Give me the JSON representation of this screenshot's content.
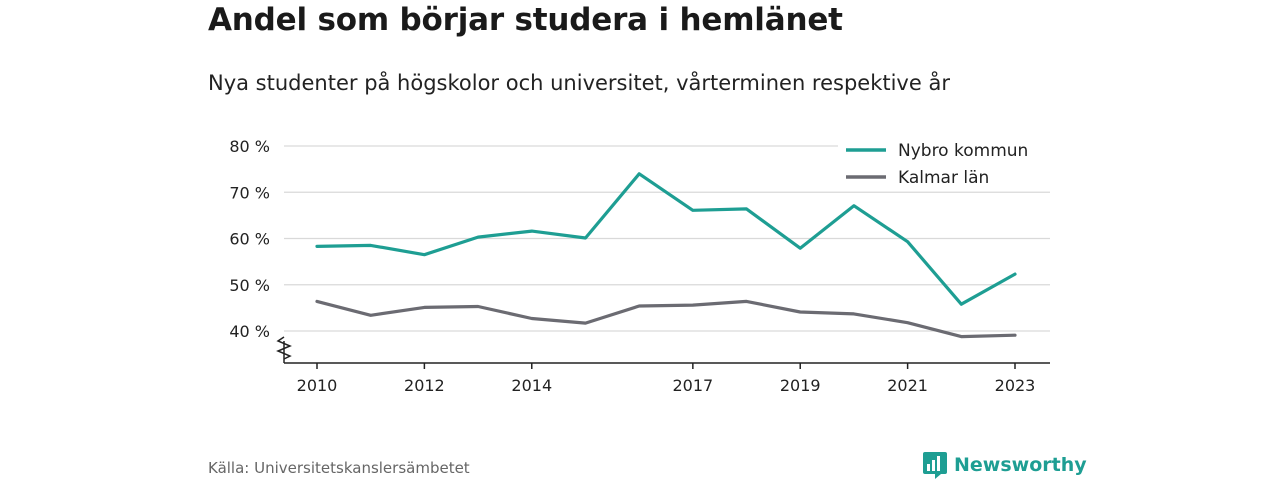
{
  "title": "Andel som börjar studera i hemlänet",
  "subtitle": "Nya studenter på högskolor och universitet, vårterminen respektive år",
  "source": "Källa: Universitetskanslersämbetet",
  "brand": {
    "name": "Newsworthy",
    "color": "#1e9e93",
    "icon": "bar-chart-speech-bubble-icon"
  },
  "chart_data": {
    "type": "line",
    "x": [
      2010,
      2011,
      2012,
      2013,
      2014,
      2015,
      2016,
      2017,
      2018,
      2019,
      2020,
      2021,
      2022,
      2023
    ],
    "x_tick_labels": [
      "2010",
      "2012",
      "2014",
      "2017",
      "2019",
      "2021",
      "2023"
    ],
    "y_tick_values": [
      40,
      50,
      60,
      70,
      80
    ],
    "y_tick_labels": [
      "40 %",
      "50 %",
      "60 %",
      "70 %",
      "80 %"
    ],
    "ylim": [
      33,
      80
    ],
    "y_axis_break": true,
    "grid": true,
    "legend_position": "top-right",
    "series": [
      {
        "name": "Nybro kommun",
        "color": "#1e9e93",
        "values": [
          58.3,
          58.5,
          56.5,
          60.3,
          61.6,
          60.1,
          74.0,
          66.1,
          66.4,
          57.9,
          67.1,
          59.3,
          45.8,
          52.3
        ]
      },
      {
        "name": "Kalmar län",
        "color": "#6b6b72",
        "values": [
          46.4,
          43.4,
          45.1,
          45.3,
          42.7,
          41.7,
          45.4,
          45.6,
          46.4,
          44.1,
          43.7,
          41.8,
          38.8,
          39.1
        ]
      }
    ]
  }
}
